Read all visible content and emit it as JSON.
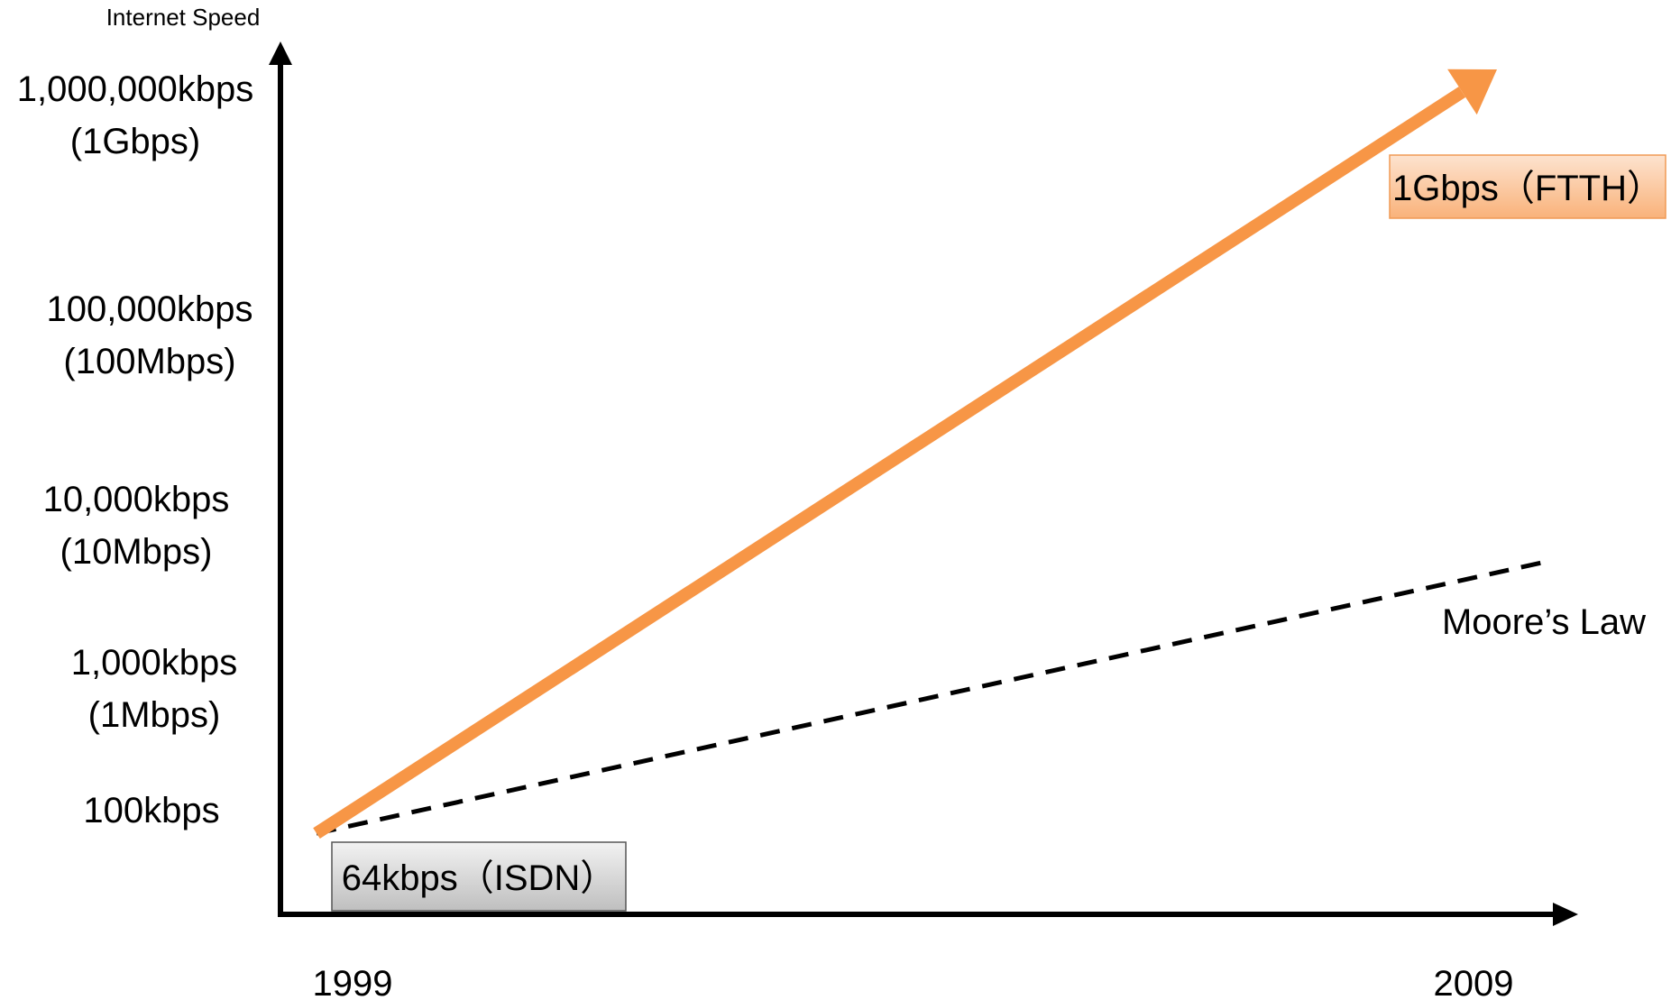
{
  "chart_data": {
    "type": "line",
    "title": "",
    "xlabel": "",
    "ylabel": "Internet Speed",
    "x": [
      1999,
      2009
    ],
    "x_tick_labels": [
      "1999",
      "2009"
    ],
    "y_scale": "log",
    "y_tick_values": [
      100,
      1000,
      10000,
      100000,
      1000000
    ],
    "y_tick_labels": [
      [
        "100kbps"
      ],
      [
        "1,000kbps",
        "(1Mbps)"
      ],
      [
        "10,000kbps",
        "(10Mbps)"
      ],
      [
        "100,000kbps",
        "(100Mbps)"
      ],
      [
        "1,000,000kbps",
        "(1Gbps)"
      ]
    ],
    "series": [
      {
        "id": "ftth",
        "values": [
          64,
          1000000
        ],
        "color": "#F79646",
        "style": "solid-arrow"
      },
      {
        "name": "Moore’s Law",
        "values": [
          64,
          6000
        ],
        "color": "#000000",
        "style": "dashed"
      }
    ],
    "annotations": [
      {
        "text": "64kbps（ISDN）",
        "year": 1999,
        "value": 64,
        "fill": "#d9d9d9"
      },
      {
        "text": "1Gbps（FTTH）",
        "year": 2009,
        "value": 1000000,
        "fill": "#fbc8a0"
      }
    ],
    "grid": false,
    "legend": "none"
  }
}
